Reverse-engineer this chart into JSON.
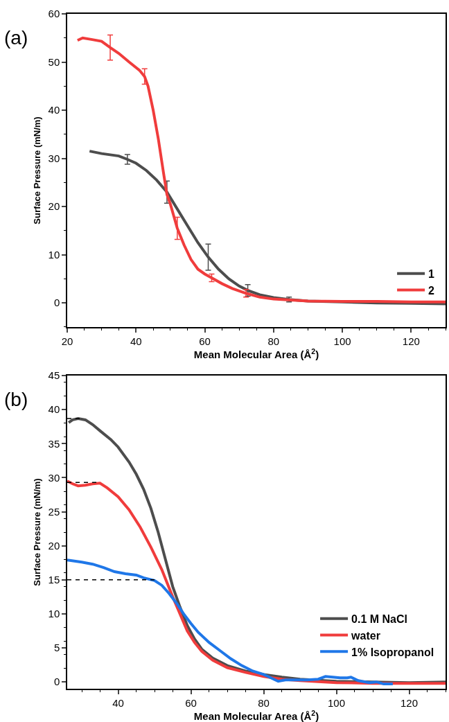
{
  "chart_data": [
    {
      "type": "line",
      "annotations": [
        "(a)"
      ],
      "xlabel": "Mean Molecular Area (Å$^{2}$)",
      "ylabel": "Surface Pressure (mN/m)",
      "xlim": [
        20,
        130
      ],
      "xticks": [
        20,
        40,
        60,
        80,
        100,
        120
      ],
      "ylim": [
        -5,
        60
      ],
      "yticks": [
        0,
        10,
        20,
        30,
        40,
        50,
        60
      ],
      "legend": "bottom right",
      "marker": "none",
      "line_style": "solid",
      "series": [
        {
          "name": "1",
          "color": "#4d4d4d",
          "x": [
            26.5,
            30,
            35,
            37.5,
            40,
            43,
            46,
            49,
            52,
            55,
            58,
            61,
            64,
            67,
            70,
            72.5,
            76,
            80,
            84.5,
            90,
            100,
            110,
            120,
            130
          ],
          "values": [
            31.5,
            31,
            30.5,
            29.8,
            29,
            27.5,
            25.5,
            23,
            19.5,
            16,
            12.5,
            9.5,
            7,
            5,
            3.5,
            2.6,
            1.7,
            1.1,
            0.7,
            0.4,
            0.2,
            0,
            -0.1,
            -0.2
          ],
          "errors": [
            null,
            null,
            null,
            1,
            null,
            null,
            null,
            2.3,
            null,
            null,
            null,
            2.7,
            null,
            null,
            null,
            1.2,
            null,
            null,
            0.5,
            null,
            null,
            null,
            null,
            null
          ]
        },
        {
          "name": "2",
          "color": "#f03c3c",
          "x": [
            23,
            24.5,
            27,
            30,
            32.5,
            35,
            38,
            41,
            42.5,
            43.5,
            45,
            46.5,
            48,
            49,
            50,
            51,
            52,
            54,
            56,
            58,
            60,
            62,
            65,
            68,
            72,
            76,
            80,
            90,
            100,
            110,
            120,
            130
          ],
          "values": [
            54.5,
            55,
            54.7,
            54.3,
            53,
            51.8,
            50,
            48.3,
            47,
            45,
            40,
            34,
            27,
            22.5,
            20.5,
            18,
            15.5,
            12,
            9,
            7,
            6,
            5.2,
            4,
            3,
            2,
            1.2,
            0.8,
            0.4,
            0.3,
            0.3,
            0.2,
            0.2
          ],
          "errors": [
            null,
            null,
            null,
            null,
            2.6,
            null,
            null,
            null,
            1.6,
            null,
            null,
            null,
            null,
            null,
            null,
            null,
            2.3,
            null,
            null,
            null,
            null,
            0.8,
            null,
            null,
            0.8,
            null,
            null,
            null,
            null,
            null,
            null,
            null
          ]
        }
      ]
    },
    {
      "type": "line",
      "annotations": [
        "(b)"
      ],
      "xlabel": "Mean Molecular Area (Å$^{2}$)",
      "ylabel": "Surface Pressure (mN/m)",
      "xlim": [
        26,
        130
      ],
      "xticks": [
        40,
        60,
        80,
        100,
        120
      ],
      "ylim": [
        -1,
        45
      ],
      "yticks": [
        0,
        5,
        10,
        15,
        20,
        25,
        30,
        35,
        40,
        45
      ],
      "legend": "bottom right",
      "marker": "none",
      "series": [
        {
          "name": "0.1 M NaCl",
          "color": "#4d4d4d",
          "line_style": "solid",
          "x": [
            26.4,
            27.5,
            29,
            31,
            33,
            35,
            38,
            40,
            43,
            45,
            47,
            49,
            51,
            53,
            55,
            57,
            59,
            61,
            63,
            66,
            70,
            75,
            80,
            85,
            90,
            100,
            110,
            120,
            130
          ],
          "values": [
            38.1,
            38.5,
            38.7,
            38.5,
            37.8,
            36.9,
            35.6,
            34.5,
            32.3,
            30.5,
            28.3,
            25.5,
            22,
            18,
            14,
            11,
            8.3,
            6.3,
            4.8,
            3.5,
            2.4,
            1.6,
            1.1,
            0.7,
            0.4,
            0.1,
            0,
            -0.1,
            0
          ]
        },
        {
          "name": "water",
          "color": "#f03c3c",
          "line_style": "solid",
          "x": [
            26,
            27.5,
            29,
            31,
            33,
            35,
            37,
            40,
            43,
            46,
            49,
            52,
            55,
            57,
            59,
            61,
            63,
            66,
            70,
            75,
            80,
            85,
            90,
            100,
            110,
            120,
            130
          ],
          "values": [
            29.5,
            29.1,
            28.8,
            28.9,
            29.1,
            29.2,
            28.5,
            27.2,
            25.3,
            22.8,
            19.8,
            16.5,
            12.5,
            10,
            7.5,
            5.8,
            4.5,
            3.2,
            2.1,
            1.4,
            0.8,
            0.4,
            0.2,
            -0.1,
            -0.2,
            -0.2,
            -0.2
          ]
        },
        {
          "name": "1% Isopropanol",
          "color": "#1f77e8",
          "line_style": "solid",
          "x": [
            26,
            30,
            33,
            36,
            39,
            42,
            45,
            47,
            50,
            52,
            54,
            56,
            58,
            60,
            62,
            65,
            68,
            71,
            74,
            77,
            80,
            82,
            84,
            86,
            89,
            92,
            95,
            97,
            99,
            101,
            103,
            104,
            106,
            109,
            111,
            113,
            115.5
          ],
          "values": [
            17.9,
            17.6,
            17.3,
            16.8,
            16.2,
            15.9,
            15.7,
            15.3,
            14.9,
            14.2,
            13,
            11.6,
            10,
            8.6,
            7.3,
            5.8,
            4.6,
            3.4,
            2.4,
            1.6,
            1.1,
            0.6,
            0.1,
            0.3,
            0.3,
            0.3,
            0.4,
            0.8,
            0.7,
            0.6,
            0.6,
            0.7,
            0.2,
            -0.1,
            0,
            -0.3,
            -0.3
          ]
        },
        {
          "color": "#000000",
          "line_style": "dashed",
          "x": [
            26,
            30
          ],
          "values": [
            38.7,
            38.7
          ]
        },
        {
          "color": "#000000",
          "line_style": "dashed",
          "x": [
            26,
            34
          ],
          "values": [
            29.3,
            29.3
          ]
        },
        {
          "color": "#000000",
          "line_style": "dashed",
          "x": [
            26,
            50
          ],
          "values": [
            15,
            15
          ]
        }
      ]
    }
  ]
}
